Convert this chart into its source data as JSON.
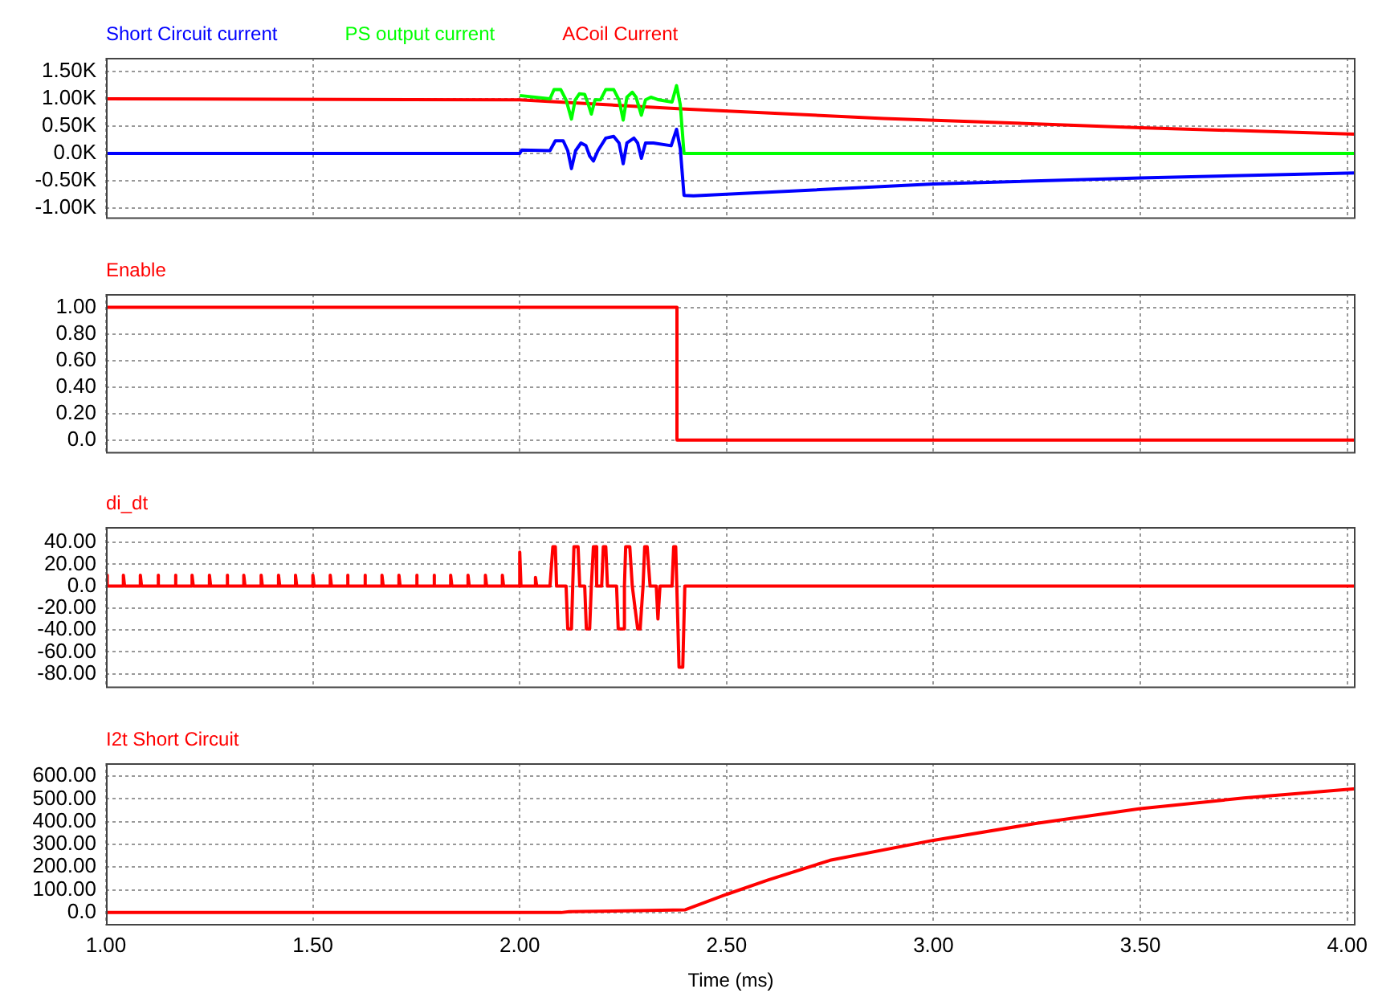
{
  "chart_data": [
    {
      "type": "line",
      "legend": "top left",
      "grid": true,
      "tick_labels": "y",
      "xlim": [
        1.0,
        4.02
      ],
      "xticks": [
        {
          "value": 1,
          "label": null
        },
        {
          "value": 1.5,
          "label": null
        },
        {
          "value": 2,
          "label": null
        },
        {
          "value": 2.5,
          "label": null
        },
        {
          "value": 3,
          "label": null
        },
        {
          "value": 3.5,
          "label": null
        },
        {
          "value": 4,
          "label": null
        }
      ],
      "ylim": [
        -1200,
        1750
      ],
      "yticks": [
        {
          "value": -1000,
          "label": "-1.00K"
        },
        {
          "value": -500,
          "label": "-0.50K"
        },
        {
          "value": 0,
          "label": "0.0K"
        },
        {
          "value": 500,
          "label": "0.50K"
        },
        {
          "value": 1000,
          "label": "1.00K"
        },
        {
          "value": 1500,
          "label": "1.50K"
        }
      ],
      "series": [
        {
          "name": "Short Circuit current",
          "color": "#0000ff",
          "x": [
            1.0,
            2.0,
            2.005,
            2.073,
            2.086,
            2.105,
            2.116,
            2.125,
            2.135,
            2.148,
            2.16,
            2.169,
            2.178,
            2.189,
            2.208,
            2.227,
            2.24,
            2.25,
            2.259,
            2.276,
            2.285,
            2.294,
            2.304,
            2.323,
            2.366,
            2.379,
            2.388,
            2.397,
            2.42,
            3.0,
            3.5,
            4.02
          ],
          "values": [
            0,
            0,
            60,
            50,
            230,
            230,
            50,
            -280,
            50,
            190,
            140,
            -50,
            -140,
            50,
            280,
            310,
            190,
            -190,
            190,
            280,
            190,
            -90,
            190,
            190,
            140,
            440,
            90,
            -770,
            -780,
            -560,
            -450,
            -360
          ]
        },
        {
          "name": "PS output current",
          "color": "#00ff00",
          "x": [
            2.0,
            2.073,
            2.083,
            2.099,
            2.112,
            2.125,
            2.134,
            2.144,
            2.157,
            2.166,
            2.173,
            2.182,
            2.195,
            2.208,
            2.227,
            2.24,
            2.25,
            2.259,
            2.272,
            2.281,
            2.294,
            2.304,
            2.317,
            2.336,
            2.368,
            2.379,
            2.388,
            2.397,
            4.02
          ],
          "values": [
            1060,
            1000,
            1170,
            1170,
            980,
            630,
            980,
            1090,
            1080,
            890,
            720,
            980,
            980,
            1170,
            1170,
            980,
            610,
            1030,
            1120,
            1030,
            700,
            980,
            1030,
            980,
            940,
            1240,
            890,
            0,
            0
          ]
        },
        {
          "name": "ACoil Current",
          "color": "#ff0000",
          "x": [
            1.0,
            2.0,
            2.4,
            2.88,
            3.5,
            4.02
          ],
          "values": [
            1000,
            980,
            810,
            640,
            470,
            350
          ]
        }
      ]
    },
    {
      "type": "line",
      "legend": "top left",
      "grid": true,
      "tick_labels": "y",
      "xlim": [
        1.0,
        4.02
      ],
      "xticks": [
        {
          "value": 1,
          "label": null
        },
        {
          "value": 1.5,
          "label": null
        },
        {
          "value": 2,
          "label": null
        },
        {
          "value": 2.5,
          "label": null
        },
        {
          "value": 3,
          "label": null
        },
        {
          "value": 3.5,
          "label": null
        },
        {
          "value": 4,
          "label": null
        }
      ],
      "ylim": [
        -0.1,
        1.1
      ],
      "yticks": [
        {
          "value": 0,
          "label": "0.0"
        },
        {
          "value": 0.2,
          "label": "0.20"
        },
        {
          "value": 0.4,
          "label": "0.40"
        },
        {
          "value": 0.6,
          "label": "0.60"
        },
        {
          "value": 0.8,
          "label": "0.80"
        },
        {
          "value": 1,
          "label": "1.00"
        }
      ],
      "series": [
        {
          "name": "Enable",
          "color": "#ff0000",
          "x": [
            1.0,
            2.38,
            2.38,
            4.02
          ],
          "values": [
            1,
            1,
            0,
            0
          ]
        }
      ]
    },
    {
      "type": "line",
      "legend": "top left",
      "grid": true,
      "tick_labels": "y",
      "xlim": [
        1.0,
        4.02
      ],
      "xticks": [
        {
          "value": 1,
          "label": null
        },
        {
          "value": 1.5,
          "label": null
        },
        {
          "value": 2,
          "label": null
        },
        {
          "value": 2.5,
          "label": null
        },
        {
          "value": 3,
          "label": null
        },
        {
          "value": 3.5,
          "label": null
        },
        {
          "value": 4,
          "label": null
        }
      ],
      "ylim": [
        -93,
        54
      ],
      "yticks": [
        {
          "value": -80,
          "label": "-80.00"
        },
        {
          "value": -60,
          "label": "-60.00"
        },
        {
          "value": -40,
          "label": "-40.00"
        },
        {
          "value": -20,
          "label": "-20.00"
        },
        {
          "value": 0,
          "label": "0.0"
        },
        {
          "value": 20,
          "label": "20.00"
        },
        {
          "value": 40,
          "label": "40.00"
        }
      ],
      "series": [
        {
          "name": "di_dt",
          "color": "#ff0000",
          "x": [
            1.0,
            1.003,
            1.042,
            1.042,
            1.045,
            1.083,
            1.083,
            1.086,
            1.125,
            1.125,
            1.128,
            1.167,
            1.167,
            1.17,
            1.208,
            1.208,
            1.211,
            1.25,
            1.25,
            1.253,
            1.292,
            1.292,
            1.295,
            1.333,
            1.333,
            1.336,
            1.375,
            1.375,
            1.378,
            1.417,
            1.417,
            1.42,
            1.458,
            1.458,
            1.461,
            1.5,
            1.5,
            1.503,
            1.542,
            1.542,
            1.545,
            1.583,
            1.583,
            1.586,
            1.625,
            1.625,
            1.628,
            1.667,
            1.667,
            1.67,
            1.708,
            1.708,
            1.711,
            1.75,
            1.75,
            1.753,
            1.792,
            1.792,
            1.795,
            1.833,
            1.833,
            1.836,
            1.875,
            1.875,
            1.878,
            1.917,
            1.917,
            1.92,
            1.958,
            1.958,
            1.961,
            2.0,
            2.0,
            2.003,
            2.038,
            2.038,
            2.041,
            2.073,
            2.08,
            2.086,
            2.089,
            2.112,
            2.116,
            2.125,
            2.128,
            2.131,
            2.141,
            2.145,
            2.157,
            2.161,
            2.169,
            2.173,
            2.178,
            2.184,
            2.186,
            2.198,
            2.202,
            2.208,
            2.212,
            2.234,
            2.238,
            2.25,
            2.253,
            2.256,
            2.266,
            2.272,
            2.285,
            2.291,
            2.298,
            2.302,
            2.308,
            2.315,
            2.33,
            2.334,
            2.339,
            2.368,
            2.372,
            2.377,
            2.385,
            2.394,
            2.399,
            4.02
          ],
          "values": [
            10,
            0,
            0,
            10,
            0,
            0,
            10,
            0,
            0,
            10,
            0,
            0,
            10,
            0,
            0,
            10,
            0,
            0,
            10,
            0,
            0,
            10,
            0,
            0,
            10,
            0,
            0,
            10,
            0,
            0,
            10,
            0,
            0,
            10,
            0,
            0,
            10,
            0,
            0,
            10,
            0,
            0,
            10,
            0,
            0,
            10,
            0,
            0,
            10,
            0,
            0,
            10,
            0,
            0,
            10,
            0,
            0,
            10,
            0,
            0,
            10,
            0,
            0,
            10,
            0,
            0,
            10,
            0,
            0,
            10,
            0,
            0,
            31,
            0,
            0,
            8,
            0,
            0,
            36,
            36,
            0,
            0,
            -39,
            -39,
            0,
            36,
            36,
            0,
            0,
            -39,
            -39,
            0,
            36,
            36,
            0,
            0,
            36,
            36,
            0,
            0,
            -39,
            -39,
            0,
            36,
            36,
            0,
            -39,
            -39,
            0,
            36,
            36,
            0,
            0,
            -30,
            0,
            0,
            36,
            36,
            -74,
            -74,
            0,
            0
          ]
        }
      ]
    },
    {
      "type": "line",
      "legend": "top left",
      "grid": true,
      "xlabel": "Time (ms)",
      "xlim": [
        1.0,
        4.02
      ],
      "xticks": [
        {
          "value": 1,
          "label": "1.00"
        },
        {
          "value": 1.5,
          "label": "1.50"
        },
        {
          "value": 2,
          "label": "2.00"
        },
        {
          "value": 2.5,
          "label": "2.50"
        },
        {
          "value": 3,
          "label": "3.00"
        },
        {
          "value": 3.5,
          "label": "3.50"
        },
        {
          "value": 4,
          "label": "4.00"
        }
      ],
      "ylim": [
        -57,
        657
      ],
      "yticks": [
        {
          "value": 0,
          "label": "0.0"
        },
        {
          "value": 100,
          "label": "100.00"
        },
        {
          "value": 200,
          "label": "200.00"
        },
        {
          "value": 300,
          "label": "300.00"
        },
        {
          "value": 400,
          "label": "400.00"
        },
        {
          "value": 500,
          "label": "500.00"
        },
        {
          "value": 600,
          "label": "600.00"
        }
      ],
      "series": [
        {
          "name": "I2t Short Circuit",
          "color": "#ff0000",
          "x": [
            1.0,
            2.1,
            2.12,
            2.4,
            2.5,
            2.6,
            2.75,
            3.0,
            3.25,
            3.5,
            3.75,
            4.02
          ],
          "values": [
            0,
            0,
            4,
            12,
            80,
            143,
            230,
            318,
            393,
            457,
            504,
            545
          ]
        }
      ]
    }
  ]
}
